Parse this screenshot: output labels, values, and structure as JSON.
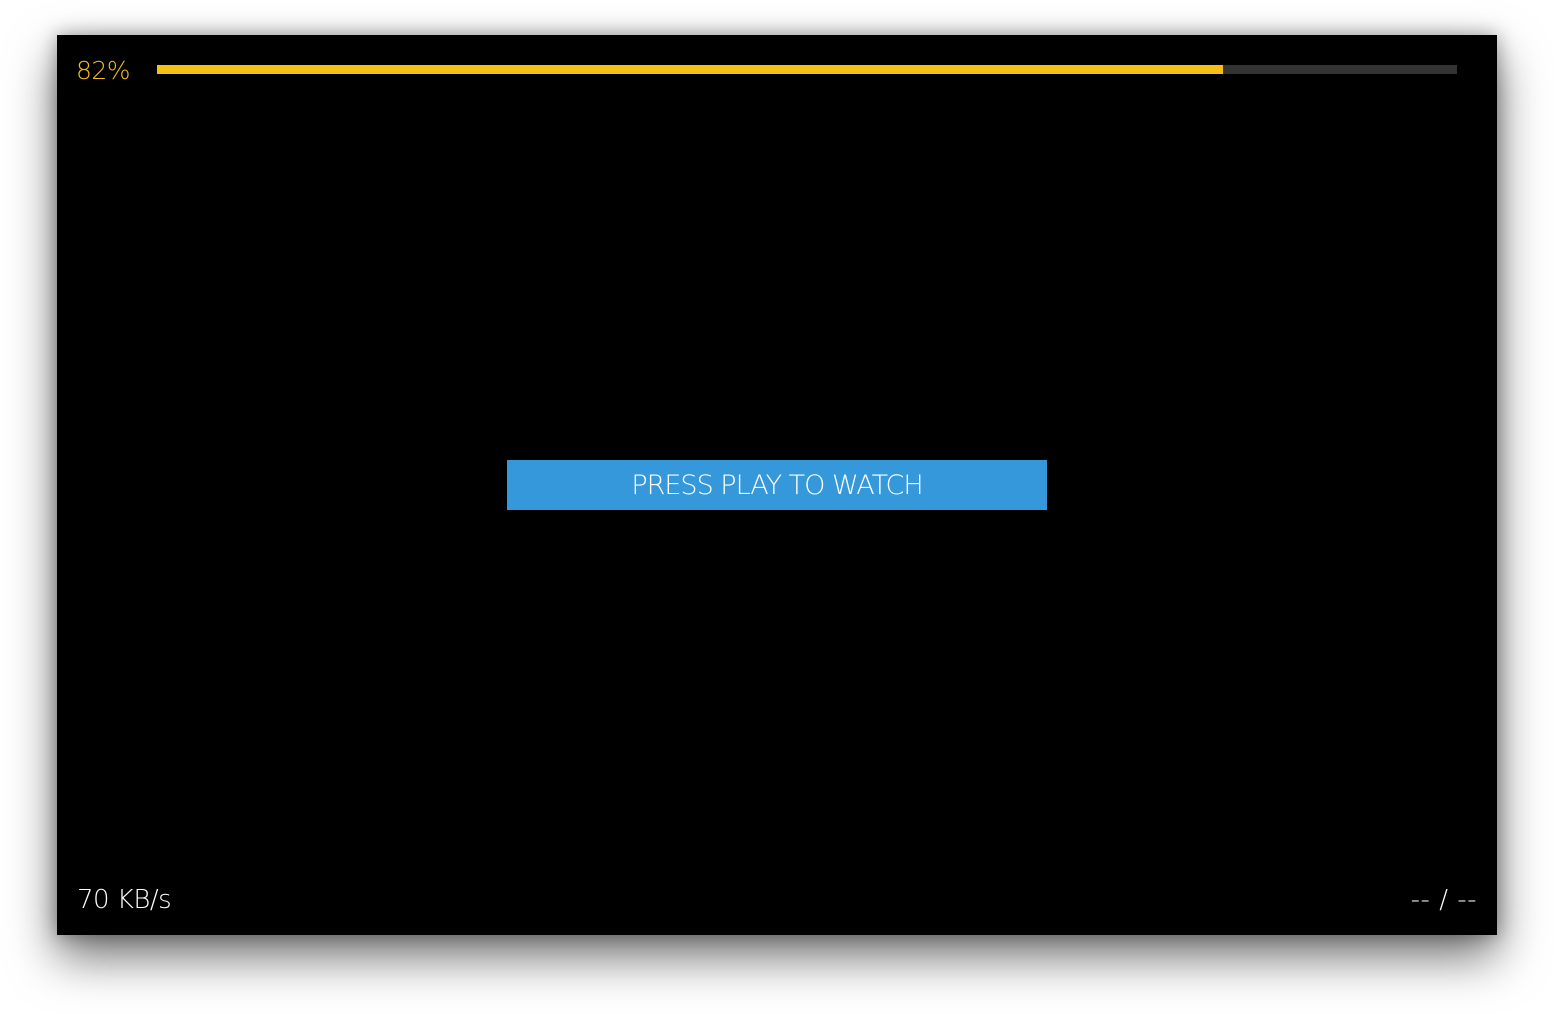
{
  "colors": {
    "accent": "#F5BF15",
    "button": "#3498DB",
    "track": "#333333",
    "background": "#000000"
  },
  "progress": {
    "label": "82%",
    "value": 82
  },
  "play_button": {
    "label": "PRESS PLAY TO WATCH"
  },
  "status": {
    "download_speed": "70 KB/s",
    "time": "-- / --"
  }
}
